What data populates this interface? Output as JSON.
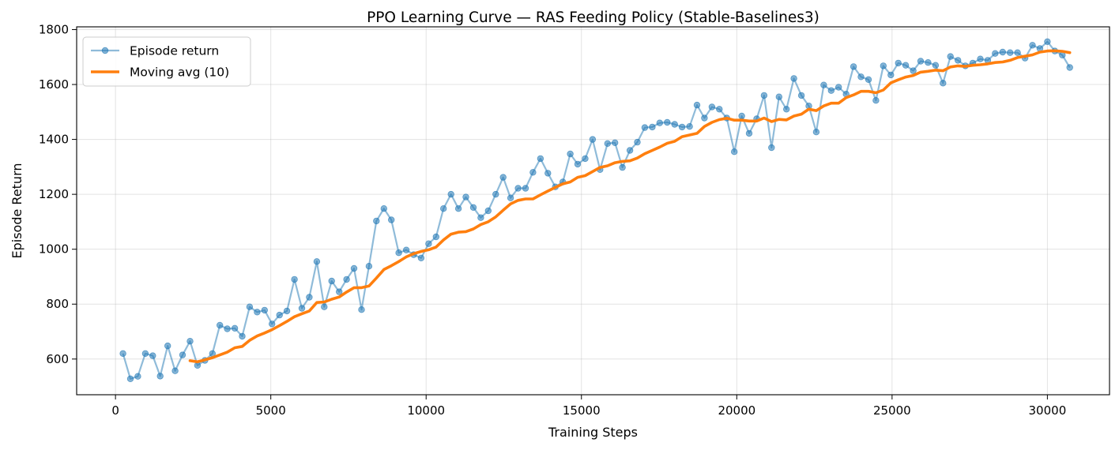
{
  "chart_data": {
    "type": "line",
    "title": "PPO Learning Curve — RAS Feeding Policy (Stable-Baselines3)",
    "xlabel": "Training Steps",
    "ylabel": "Episode Return",
    "xlim": [
      -1250,
      32000
    ],
    "ylim": [
      470,
      1810
    ],
    "xticks": [
      0,
      5000,
      10000,
      15000,
      20000,
      25000,
      30000
    ],
    "yticks": [
      600,
      800,
      1000,
      1200,
      1400,
      1600,
      1800
    ],
    "grid": true,
    "legend_position": "upper-left",
    "series": [
      {
        "name": "Episode return",
        "color": "#1f77b4",
        "style": "line-with-markers",
        "x": [
          240,
          480,
          720,
          960,
          1200,
          1440,
          1680,
          1920,
          2160,
          2400,
          2640,
          2880,
          3120,
          3360,
          3600,
          3840,
          4080,
          4320,
          4560,
          4800,
          5040,
          5280,
          5520,
          5760,
          6000,
          6240,
          6480,
          6720,
          6960,
          7200,
          7440,
          7680,
          7920,
          8160,
          8400,
          8640,
          8880,
          9120,
          9360,
          9600,
          9840,
          10080,
          10320,
          10560,
          10800,
          11040,
          11280,
          11520,
          11760,
          12000,
          12240,
          12480,
          12720,
          12960,
          13200,
          13440,
          13680,
          13920,
          14160,
          14400,
          14640,
          14880,
          15120,
          15360,
          15600,
          15840,
          16080,
          16320,
          16560,
          16800,
          17040,
          17280,
          17520,
          17760,
          18000,
          18240,
          18480,
          18720,
          18960,
          19200,
          19440,
          19680,
          19920,
          20160,
          20400,
          20640,
          20880,
          21120,
          21360,
          21600,
          21840,
          22080,
          22320,
          22560,
          22800,
          23040,
          23280,
          23520,
          23760,
          24000,
          24240,
          24480,
          24720,
          24960,
          25200,
          25440,
          25680,
          25920,
          26160,
          26400,
          26640,
          26880,
          27120,
          27360,
          27600,
          27840,
          28080,
          28320,
          28560,
          28800,
          29040,
          29280,
          29520,
          29760,
          30000,
          30240,
          30480,
          30720
        ],
        "y": [
          620,
          528,
          537,
          620,
          612,
          538,
          648,
          557,
          615,
          665,
          577,
          595,
          620,
          723,
          710,
          712,
          683,
          790,
          771,
          778,
          728,
          760,
          775,
          890,
          785,
          825,
          955,
          790,
          884,
          845,
          890,
          930,
          780,
          938,
          1103,
          1148,
          1107,
          987,
          997,
          980,
          968,
          1020,
          1045,
          1148,
          1200,
          1148,
          1190,
          1152,
          1115,
          1140,
          1200,
          1262,
          1187,
          1222,
          1222,
          1280,
          1330,
          1277,
          1227,
          1245,
          1347,
          1310,
          1330,
          1400,
          1290,
          1385,
          1388,
          1298,
          1360,
          1390,
          1443,
          1445,
          1460,
          1462,
          1455,
          1445,
          1447,
          1525,
          1478,
          1518,
          1510,
          1478,
          1355,
          1485,
          1422,
          1475,
          1560,
          1370,
          1555,
          1510,
          1622,
          1560,
          1522,
          1427,
          1598,
          1578,
          1590,
          1565,
          1665,
          1628,
          1618,
          1542,
          1668,
          1635,
          1678,
          1670,
          1650,
          1685,
          1680,
          1670,
          1605,
          1702,
          1688,
          1668,
          1678,
          1693,
          1688,
          1713,
          1718,
          1716,
          1716,
          1696,
          1743,
          1731,
          1756,
          1722,
          1707,
          1662
        ]
      },
      {
        "name": "Moving avg (10)",
        "color": "#ff7f0e",
        "style": "line",
        "x": [
          2400,
          2640,
          2880,
          3120,
          3360,
          3600,
          3840,
          4080,
          4320,
          4560,
          4800,
          5040,
          5280,
          5520,
          5760,
          6000,
          6240,
          6480,
          6720,
          6960,
          7200,
          7440,
          7680,
          7920,
          8160,
          8400,
          8640,
          8880,
          9120,
          9360,
          9600,
          9840,
          10080,
          10320,
          10560,
          10800,
          11040,
          11280,
          11520,
          11760,
          12000,
          12240,
          12480,
          12720,
          12960,
          13200,
          13440,
          13680,
          13920,
          14160,
          14400,
          14640,
          14880,
          15120,
          15360,
          15600,
          15840,
          16080,
          16320,
          16560,
          16800,
          17040,
          17280,
          17520,
          17760,
          18000,
          18240,
          18480,
          18720,
          18960,
          19200,
          19440,
          19680,
          19920,
          20160,
          20400,
          20640,
          20880,
          21120,
          21360,
          21600,
          21840,
          22080,
          22320,
          22560,
          22800,
          23040,
          23280,
          23520,
          23760,
          24000,
          24240,
          24480,
          24720,
          24960,
          25200,
          25440,
          25680,
          25920,
          26160,
          26400,
          26640,
          26880,
          27120,
          27360,
          27600,
          27840,
          28080,
          28320,
          28560,
          28800,
          29040,
          29280,
          29520,
          29760,
          30000,
          30240,
          30480,
          30720
        ],
        "y": [
          594,
          590,
          597,
          605,
          615,
          625,
          641,
          646,
          668,
          684,
          695,
          707,
          722,
          737,
          754,
          765,
          775,
          806,
          808,
          818,
          826,
          844,
          860,
          860,
          866,
          895,
          926,
          940,
          955,
          972,
          984,
          992,
          998,
          1008,
          1034,
          1055,
          1062,
          1064,
          1074,
          1090,
          1100,
          1118,
          1142,
          1165,
          1178,
          1183,
          1183,
          1198,
          1212,
          1225,
          1238,
          1245,
          1262,
          1268,
          1283,
          1298,
          1304,
          1315,
          1320,
          1322,
          1332,
          1348,
          1360,
          1372,
          1386,
          1393,
          1410,
          1416,
          1422,
          1447,
          1462,
          1472,
          1477,
          1470,
          1470,
          1467,
          1467,
          1478,
          1465,
          1473,
          1471,
          1485,
          1492,
          1510,
          1505,
          1522,
          1532,
          1532,
          1552,
          1562,
          1575,
          1575,
          1570,
          1580,
          1606,
          1617,
          1627,
          1633,
          1645,
          1648,
          1652,
          1650,
          1664,
          1668,
          1666,
          1670,
          1672,
          1675,
          1680,
          1682,
          1688,
          1698,
          1703,
          1708,
          1718,
          1722,
          1723,
          1721,
          1716
        ]
      }
    ]
  }
}
